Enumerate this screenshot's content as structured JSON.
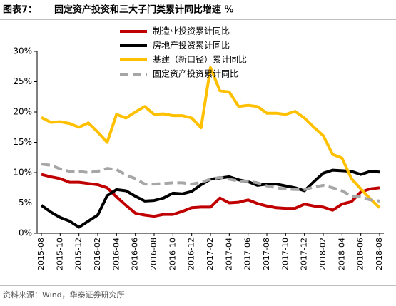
{
  "chart_data": {
    "type": "line",
    "title_label": "图表7：",
    "title": "固定资产投资和三大子门类累计同比增速 %",
    "source": "资料来源：Wind，华泰证券研究所",
    "categories": [
      "2015-08",
      null,
      "2015-10",
      null,
      "2015-12",
      null,
      "2016-02",
      null,
      "2016-04",
      null,
      "2016-06",
      null,
      "2016-08",
      null,
      "2016-10",
      null,
      "2016-12",
      null,
      "2017-02",
      null,
      "2017-04",
      null,
      "2017-06",
      null,
      "2017-08",
      null,
      "2017-10",
      null,
      "2017-12",
      null,
      "2018-02",
      null,
      "2018-04",
      null,
      "2018-06",
      null,
      "2018-08"
    ],
    "series": [
      {
        "name": "制造业投资累计同比",
        "color": "#c00000",
        "dash": false,
        "values": [
          9.7,
          9.3,
          9.0,
          8.4,
          8.4,
          8.2,
          8.0,
          7.5,
          6.0,
          4.6,
          3.3,
          3.0,
          2.8,
          3.1,
          3.1,
          3.6,
          4.2,
          4.3,
          4.3,
          5.8,
          5.0,
          5.1,
          5.5,
          4.9,
          4.5,
          4.2,
          4.1,
          4.1,
          4.8,
          4.5,
          4.3,
          3.8,
          4.8,
          5.2,
          6.8,
          7.3,
          7.5
        ]
      },
      {
        "name": "房地产投资累计同比",
        "color": "#000000",
        "dash": false,
        "values": [
          4.6,
          3.5,
          2.6,
          2.0,
          1.0,
          2.0,
          3.0,
          6.2,
          7.2,
          7.0,
          6.1,
          5.3,
          5.4,
          5.8,
          6.6,
          6.5,
          6.9,
          8.0,
          8.9,
          9.1,
          9.3,
          8.8,
          8.5,
          7.9,
          8.1,
          8.1,
          7.8,
          7.5,
          7.0,
          8.5,
          9.9,
          10.4,
          10.3,
          10.2,
          9.7,
          10.2,
          10.1
        ]
      },
      {
        "name": "基建（新口径）累计同比",
        "color": "#ffc000",
        "dash": false,
        "values": [
          19.1,
          18.3,
          18.4,
          18.1,
          17.5,
          18.2,
          16.7,
          15.0,
          19.6,
          19.0,
          20.0,
          20.9,
          19.6,
          19.7,
          19.4,
          19.4,
          19.0,
          17.4,
          27.3,
          23.5,
          23.3,
          20.9,
          21.1,
          20.9,
          19.8,
          19.8,
          19.6,
          20.1,
          19.0,
          17.5,
          16.1,
          13.0,
          12.4,
          9.0,
          7.3,
          5.7,
          4.2
        ]
      },
      {
        "name": "固定资产投资累计同比",
        "color": "#a6a6a6",
        "dash": true,
        "values": [
          11.4,
          11.2,
          10.6,
          10.2,
          10.2,
          10.0,
          10.2,
          10.7,
          10.5,
          9.6,
          9.0,
          8.1,
          8.1,
          8.2,
          8.3,
          8.3,
          8.1,
          8.4,
          8.9,
          9.2,
          8.9,
          8.6,
          8.6,
          8.3,
          7.8,
          7.5,
          7.3,
          7.2,
          7.2,
          7.6,
          7.9,
          7.5,
          7.0,
          6.1,
          6.0,
          5.5,
          5.3
        ]
      }
    ],
    "ylim": [
      0,
      30
    ],
    "yticks": [
      {
        "value": 0,
        "label": "0%"
      },
      {
        "value": 5,
        "label": "5%"
      },
      {
        "value": 10,
        "label": "10%"
      },
      {
        "value": 15,
        "label": "15%"
      },
      {
        "value": 20,
        "label": "20%"
      },
      {
        "value": 25,
        "label": "25%"
      },
      {
        "value": 30,
        "label": "30%"
      }
    ],
    "grid": false,
    "legend": "top"
  }
}
